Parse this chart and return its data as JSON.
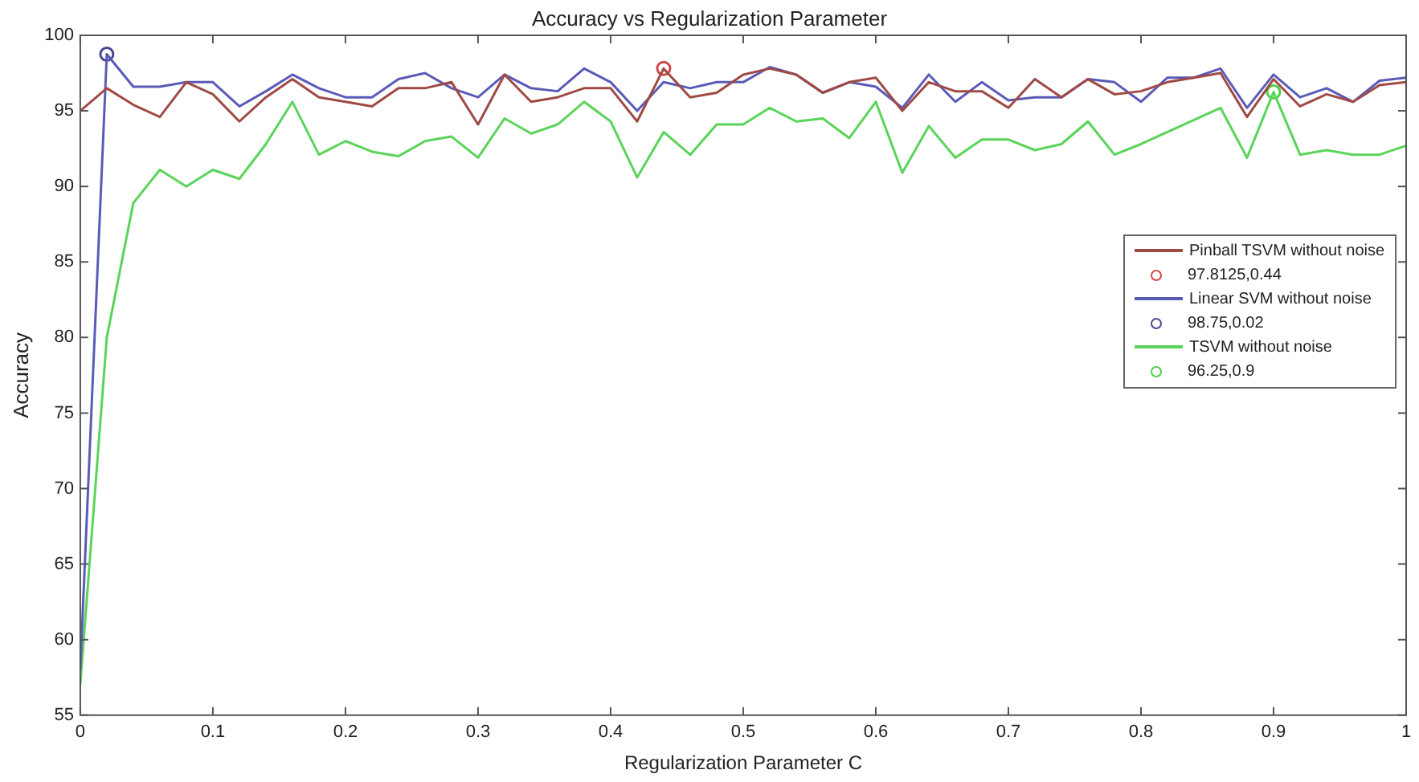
{
  "chart_data": {
    "type": "line",
    "title": "Accuracy vs Regularization Parameter",
    "xlabel": "Regularization Parameter C",
    "ylabel": "Accuracy",
    "x": [
      0,
      0.02,
      0.04,
      0.06,
      0.08,
      0.1,
      0.12,
      0.14,
      0.16,
      0.18,
      0.2,
      0.22,
      0.24,
      0.26,
      0.28,
      0.3,
      0.32,
      0.34,
      0.36,
      0.38,
      0.4,
      0.42,
      0.44,
      0.46,
      0.48,
      0.5,
      0.52,
      0.54,
      0.56,
      0.58,
      0.6,
      0.62,
      0.64,
      0.66,
      0.68,
      0.7,
      0.72,
      0.74,
      0.76,
      0.78,
      0.8,
      0.82,
      0.84,
      0.86,
      0.88,
      0.9,
      0.92,
      0.94,
      0.96,
      0.98,
      1
    ],
    "xlim": [
      0,
      1
    ],
    "xticks": [
      0,
      0.1,
      0.2,
      0.3,
      0.4,
      0.5,
      0.6,
      0.7,
      0.8,
      0.9,
      1
    ],
    "ylim": [
      55,
      100
    ],
    "yticks": [
      55,
      60,
      65,
      70,
      75,
      80,
      85,
      90,
      95,
      100
    ],
    "grid": false,
    "legend": "right",
    "marker": "none",
    "line_style": "solid",
    "series": [
      {
        "name": "Pinball TSVM without noise",
        "color": "#a04a45",
        "values": [
          95.0,
          96.5,
          95.4,
          94.6,
          96.9,
          96.1,
          94.3,
          95.9,
          97.1,
          95.9,
          95.6,
          95.3,
          96.5,
          96.5,
          96.9,
          94.1,
          97.4,
          95.6,
          95.9,
          96.5,
          96.5,
          94.3,
          97.8,
          95.9,
          96.2,
          97.4,
          97.8,
          97.4,
          96.2,
          96.9,
          97.2,
          95.0,
          96.9,
          96.3,
          96.3,
          95.2,
          97.1,
          95.9,
          97.1,
          96.1,
          96.3,
          96.9,
          97.2,
          97.5,
          94.6,
          97.1,
          95.3,
          96.1,
          95.6,
          96.7,
          96.9
        ]
      },
      {
        "name": "97.8125,0.44",
        "type": "scatter",
        "marker": "circle",
        "color": "#d04848",
        "x": [
          0.44
        ],
        "values": [
          97.8125
        ]
      },
      {
        "name": "Linear SVM without noise",
        "color": "#5a5ab8",
        "values": [
          58,
          98.75,
          96.6,
          96.6,
          96.9,
          96.9,
          95.3,
          96.3,
          97.4,
          96.5,
          95.9,
          95.9,
          97.1,
          97.5,
          96.5,
          95.9,
          97.4,
          96.5,
          96.3,
          97.8,
          96.9,
          95.0,
          96.9,
          96.5,
          96.9,
          96.9,
          97.9,
          97.4,
          96.2,
          96.9,
          96.6,
          95.2,
          97.4,
          95.6,
          96.9,
          95.7,
          95.9,
          95.9,
          97.1,
          96.9,
          95.6,
          97.2,
          97.2,
          97.8,
          95.2,
          97.4,
          95.9,
          96.5,
          95.6,
          97.0,
          97.2
        ]
      },
      {
        "name": "98.75,0.02",
        "type": "scatter",
        "marker": "circle",
        "color": "#4a4a90",
        "x": [
          0.02
        ],
        "values": [
          98.75
        ]
      },
      {
        "name": "TSVM without noise",
        "color": "#5ad45a",
        "values": [
          57,
          80,
          88.9,
          91.1,
          90.0,
          91.1,
          90.5,
          92.8,
          95.6,
          92.1,
          93.0,
          92.3,
          92.0,
          93.0,
          93.3,
          91.9,
          94.5,
          93.5,
          94.1,
          95.6,
          94.3,
          90.6,
          93.6,
          92.1,
          94.1,
          94.1,
          95.2,
          94.3,
          94.5,
          93.2,
          95.6,
          90.9,
          94.0,
          91.9,
          93.1,
          93.1,
          92.4,
          92.8,
          94.3,
          92.1,
          92.8,
          93.6,
          94.4,
          95.2,
          91.9,
          96.25,
          92.1,
          92.4,
          92.1,
          92.1,
          92.7
        ]
      },
      {
        "name": "96.25,0.9",
        "type": "scatter",
        "marker": "circle",
        "color": "#48d048",
        "x": [
          0.9
        ],
        "values": [
          96.25
        ]
      }
    ]
  }
}
